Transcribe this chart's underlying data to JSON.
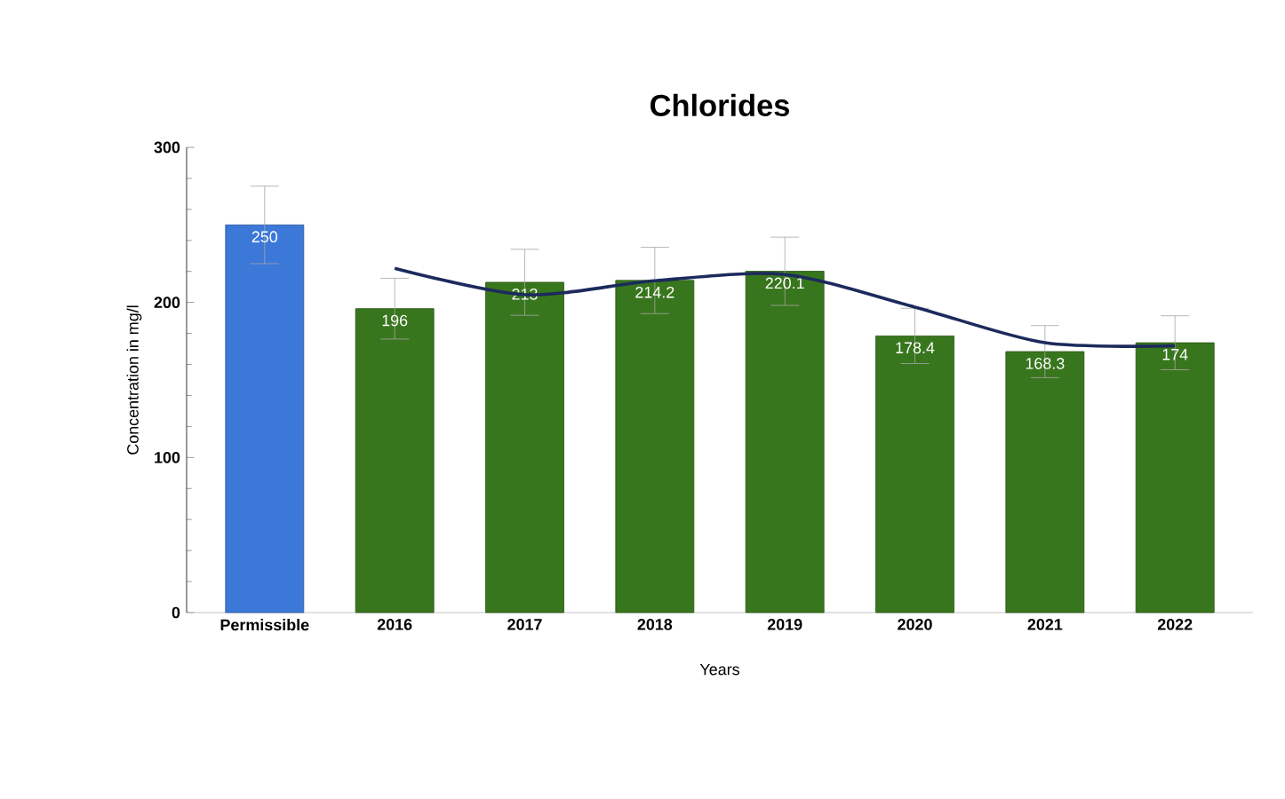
{
  "chart_data": {
    "type": "bar",
    "title": "Chlorides",
    "xlabel": "Years",
    "ylabel": "Concentration in mg/l",
    "categories": [
      "Permissible",
      "2016",
      "2017",
      "2018",
      "2019",
      "2020",
      "2021",
      "2022"
    ],
    "ylim": [
      0,
      300
    ],
    "yticks": [
      0,
      100,
      200,
      300
    ],
    "series": [
      {
        "values": [
          250,
          196,
          213,
          214.2,
          220.1,
          178.4,
          168.3,
          174
        ],
        "value_labels": [
          "250",
          "196",
          "213",
          "214.2",
          "220.1",
          "178.4",
          "168.3",
          "174"
        ],
        "colors": [
          "#3c78d8",
          "#38761d",
          "#38761d",
          "#38761d",
          "#38761d",
          "#38761d",
          "#38761d",
          "#38761d"
        ],
        "errors": [
          25,
          19.6,
          21.3,
          21.4,
          22,
          17.8,
          16.8,
          17.4
        ]
      },
      {
        "type": "line",
        "color": "#1c2a5c",
        "values": [
          null,
          222,
          205,
          214,
          218,
          197,
          174,
          172
        ]
      }
    ]
  }
}
